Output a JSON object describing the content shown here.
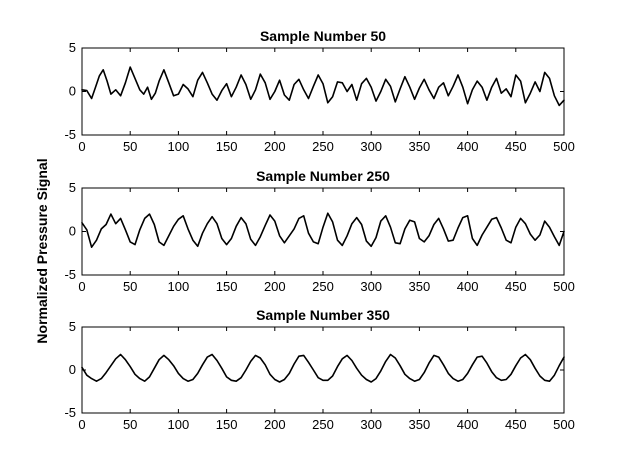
{
  "figure": {
    "ylabel": "Normalized Pressure Signal",
    "colors": {
      "line": "#000000",
      "axes": "#000000",
      "background": "#ffffff"
    }
  },
  "chart_data": [
    {
      "type": "line",
      "title": "Sample Number 50",
      "xlabel": "",
      "ylabel": "Normalized Pressure Signal",
      "xlim": [
        0,
        500
      ],
      "ylim": [
        -5,
        5
      ],
      "xticks": [
        0,
        50,
        100,
        150,
        200,
        250,
        300,
        350,
        400,
        450,
        500
      ],
      "yticks": [
        -5,
        0,
        5
      ],
      "grid": false,
      "series": [
        {
          "x": [
            0,
            5,
            10,
            14,
            18,
            22,
            26,
            30,
            35,
            40,
            45,
            50,
            55,
            60,
            64,
            68,
            72,
            76,
            80,
            85,
            90,
            95,
            100,
            105,
            110,
            115,
            120,
            125,
            130,
            135,
            140,
            145,
            150,
            155,
            160,
            165,
            170,
            175,
            180,
            185,
            190,
            195,
            200,
            205,
            210,
            215,
            220,
            225,
            230,
            235,
            240,
            245,
            250,
            255,
            260,
            265,
            270,
            275,
            280,
            285,
            290,
            295,
            300,
            305,
            310,
            315,
            320,
            325,
            330,
            335,
            340,
            345,
            350,
            355,
            360,
            365,
            370,
            375,
            380,
            385,
            390,
            395,
            400,
            405,
            410,
            415,
            420,
            425,
            430,
            435,
            440,
            445,
            450,
            455,
            460,
            465,
            470,
            475,
            480,
            485,
            490,
            495,
            500
          ],
          "values": [
            0.2,
            0.1,
            -0.8,
            0.5,
            1.8,
            2.5,
            1.2,
            -0.3,
            0.2,
            -0.5,
            1.0,
            2.8,
            1.5,
            0.2,
            -0.3,
            0.5,
            -0.9,
            -0.2,
            1.2,
            2.5,
            1.0,
            -0.5,
            -0.3,
            0.8,
            0.3,
            -0.6,
            1.3,
            2.2,
            1.0,
            -0.3,
            -1.0,
            0.1,
            0.9,
            -0.6,
            0.5,
            1.9,
            0.8,
            -0.9,
            0.2,
            2.0,
            1.0,
            -0.9,
            0.0,
            1.3,
            -0.4,
            -1.0,
            0.8,
            1.4,
            0.2,
            -0.8,
            0.6,
            1.9,
            0.9,
            -1.3,
            -0.6,
            1.1,
            1.0,
            0.0,
            0.8,
            -1.0,
            0.9,
            1.5,
            0.5,
            -1.1,
            0.0,
            1.4,
            0.6,
            -1.2,
            0.3,
            1.7,
            0.5,
            -0.9,
            0.4,
            1.4,
            0.2,
            -0.8,
            0.5,
            1.0,
            -0.5,
            0.6,
            1.9,
            0.5,
            -1.4,
            0.2,
            1.2,
            0.5,
            -1.0,
            0.5,
            1.5,
            -0.2,
            0.3,
            -0.6,
            1.9,
            1.2,
            -1.3,
            -0.2,
            1.1,
            0.0,
            2.2,
            1.5,
            -0.5,
            -1.6,
            -1.0
          ]
        }
      ]
    },
    {
      "type": "line",
      "title": "Sample Number 250",
      "xlabel": "",
      "ylabel": "Normalized Pressure Signal",
      "xlim": [
        0,
        500
      ],
      "ylim": [
        -5,
        5
      ],
      "xticks": [
        0,
        50,
        100,
        150,
        200,
        250,
        300,
        350,
        400,
        450,
        500
      ],
      "yticks": [
        -5,
        0,
        5
      ],
      "grid": false,
      "series": [
        {
          "x": [
            0,
            5,
            10,
            15,
            20,
            25,
            30,
            35,
            40,
            45,
            50,
            55,
            60,
            65,
            70,
            75,
            80,
            85,
            90,
            95,
            100,
            105,
            110,
            115,
            120,
            125,
            130,
            135,
            140,
            145,
            150,
            155,
            160,
            165,
            170,
            175,
            180,
            185,
            190,
            195,
            200,
            205,
            210,
            215,
            220,
            225,
            230,
            235,
            240,
            245,
            250,
            255,
            260,
            265,
            270,
            275,
            280,
            285,
            290,
            295,
            300,
            305,
            310,
            315,
            320,
            325,
            330,
            335,
            340,
            345,
            350,
            355,
            360,
            365,
            370,
            375,
            380,
            385,
            390,
            395,
            400,
            405,
            410,
            415,
            420,
            425,
            430,
            435,
            440,
            445,
            450,
            455,
            460,
            465,
            470,
            475,
            480,
            485,
            490,
            495,
            500
          ],
          "values": [
            1.0,
            0.2,
            -1.8,
            -1.0,
            0.3,
            0.8,
            2.0,
            0.9,
            1.5,
            0.2,
            -1.2,
            -1.5,
            0.2,
            1.5,
            2.0,
            0.8,
            -1.2,
            -1.6,
            -0.5,
            0.6,
            1.4,
            1.8,
            0.3,
            -1.0,
            -1.7,
            -0.2,
            0.9,
            1.7,
            0.9,
            -0.8,
            -1.5,
            -0.8,
            0.6,
            1.6,
            0.9,
            -0.9,
            -1.6,
            -0.6,
            0.7,
            1.9,
            1.2,
            -0.5,
            -1.3,
            -0.5,
            0.3,
            1.5,
            1.8,
            -0.2,
            -1.2,
            -1.4,
            0.5,
            2.1,
            1.1,
            -1.0,
            -1.6,
            -0.5,
            0.9,
            1.6,
            0.8,
            -1.1,
            -1.7,
            -0.7,
            1.2,
            1.8,
            0.5,
            -1.3,
            -1.4,
            0.3,
            1.3,
            1.1,
            -0.8,
            -1.2,
            -0.5,
            0.8,
            1.5,
            0.3,
            -1.1,
            -1.0,
            0.4,
            1.6,
            1.8,
            -0.8,
            -1.6,
            -0.4,
            0.5,
            1.4,
            1.6,
            0.4,
            -1.0,
            -1.3,
            0.5,
            1.5,
            0.9,
            -0.3,
            -1.0,
            -0.4,
            1.2,
            0.5,
            -0.6,
            -1.6,
            0.0
          ]
        }
      ]
    },
    {
      "type": "line",
      "title": "Sample Number 350",
      "xlabel": "",
      "ylabel": "Normalized Pressure Signal",
      "xlim": [
        0,
        500
      ],
      "ylim": [
        -5,
        5
      ],
      "xticks": [
        0,
        50,
        100,
        150,
        200,
        250,
        300,
        350,
        400,
        450,
        500
      ],
      "yticks": [
        -5,
        0,
        5
      ],
      "grid": false,
      "series": [
        {
          "x": [
            0,
            5,
            10,
            15,
            20,
            25,
            30,
            35,
            40,
            45,
            50,
            55,
            60,
            65,
            70,
            75,
            80,
            85,
            90,
            95,
            100,
            105,
            110,
            115,
            120,
            125,
            130,
            135,
            140,
            145,
            150,
            155,
            160,
            165,
            170,
            175,
            180,
            185,
            190,
            195,
            200,
            205,
            210,
            215,
            220,
            225,
            230,
            235,
            240,
            245,
            250,
            255,
            260,
            265,
            270,
            275,
            280,
            285,
            290,
            295,
            300,
            305,
            310,
            315,
            320,
            325,
            330,
            335,
            340,
            345,
            350,
            355,
            360,
            365,
            370,
            375,
            380,
            385,
            390,
            395,
            400,
            405,
            410,
            415,
            420,
            425,
            430,
            435,
            440,
            445,
            450,
            455,
            460,
            465,
            470,
            475,
            480,
            485,
            490,
            495,
            500
          ],
          "values": [
            0.3,
            -0.6,
            -1.0,
            -1.3,
            -1.0,
            -0.3,
            0.5,
            1.3,
            1.8,
            1.2,
            0.4,
            -0.5,
            -1.0,
            -1.3,
            -0.8,
            0.2,
            1.2,
            1.7,
            1.2,
            0.5,
            -0.4,
            -1.0,
            -1.3,
            -1.1,
            -0.4,
            0.6,
            1.5,
            1.8,
            1.1,
            0.2,
            -0.8,
            -1.2,
            -1.3,
            -0.9,
            0.0,
            1.0,
            1.7,
            1.4,
            0.6,
            -0.5,
            -1.1,
            -1.4,
            -1.1,
            -0.4,
            0.7,
            1.6,
            1.7,
            0.9,
            0.0,
            -0.9,
            -1.2,
            -1.2,
            -0.7,
            0.4,
            1.3,
            1.7,
            1.1,
            0.2,
            -0.6,
            -1.1,
            -1.4,
            -1.0,
            -0.1,
            1.0,
            1.8,
            1.4,
            0.5,
            -0.5,
            -1.0,
            -1.3,
            -1.1,
            -0.3,
            0.8,
            1.7,
            1.5,
            0.6,
            -0.4,
            -1.0,
            -1.3,
            -1.1,
            -0.4,
            0.6,
            1.5,
            1.6,
            0.8,
            -0.2,
            -0.9,
            -1.2,
            -1.1,
            -0.5,
            0.5,
            1.4,
            1.8,
            1.2,
            0.2,
            -0.7,
            -1.2,
            -1.3,
            -0.6,
            0.5,
            1.5
          ]
        }
      ]
    }
  ]
}
